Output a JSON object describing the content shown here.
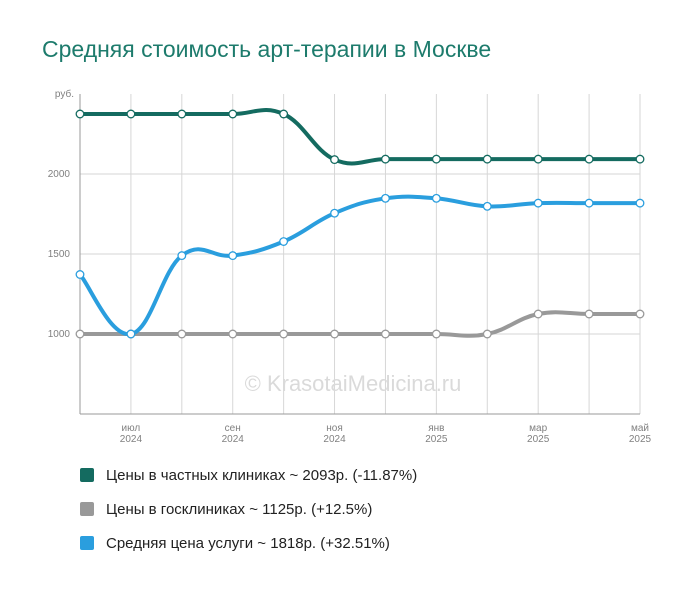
{
  "chart_data": {
    "type": "line",
    "title": "Средняя стоимость арт-терапии в Москве",
    "ylabel": "руб.",
    "ylim": [
      500,
      2500
    ],
    "y_ticks": [
      1000,
      1500,
      2000
    ],
    "x_ticks": [
      {
        "month": "июл",
        "year": "2024",
        "index": 1
      },
      {
        "month": "сен",
        "year": "2024",
        "index": 3
      },
      {
        "month": "ноя",
        "year": "2024",
        "index": 5
      },
      {
        "month": "янв",
        "year": "2025",
        "index": 7
      },
      {
        "month": "мар",
        "year": "2025",
        "index": 9
      },
      {
        "month": "май",
        "year": "2025",
        "index": 11
      }
    ],
    "x": [
      "2024-06",
      "2024-07",
      "2024-08",
      "2024-09",
      "2024-10",
      "2024-11",
      "2024-12",
      "2025-01",
      "2025-02",
      "2025-03",
      "2025-04",
      "2025-05"
    ],
    "series": [
      {
        "name": "Цены в частных клиниках",
        "color": "#146b60",
        "values": [
          2375,
          2375,
          2375,
          2375,
          2375,
          2090,
          2093,
          2093,
          2093,
          2093,
          2093,
          2093
        ]
      },
      {
        "name": "Цены в госклиниках",
        "color": "#999999",
        "values": [
          1000,
          1000,
          1000,
          1000,
          1000,
          1000,
          1000,
          1000,
          1000,
          1125,
          1125,
          1125
        ]
      },
      {
        "name": "Средняя цена услуги",
        "color": "#2a9ede",
        "values": [
          1372,
          1000,
          1490,
          1490,
          1578,
          1755,
          1848,
          1848,
          1798,
          1818,
          1818,
          1818
        ]
      }
    ],
    "grid": true,
    "legend_position": "bottom"
  },
  "watermark": "© KrasotaiMedicina.ru",
  "legend": [
    {
      "text": "Цены в частных клиниках ~ 2093р. (-11.87%)",
      "color": "#146b60"
    },
    {
      "text": "Цены в госклиниках ~ 1125р. (+12.5%)",
      "color": "#999999"
    },
    {
      "text": "Средняя цена услуги ~ 1818р. (+32.51%)",
      "color": "#2a9ede"
    }
  ]
}
